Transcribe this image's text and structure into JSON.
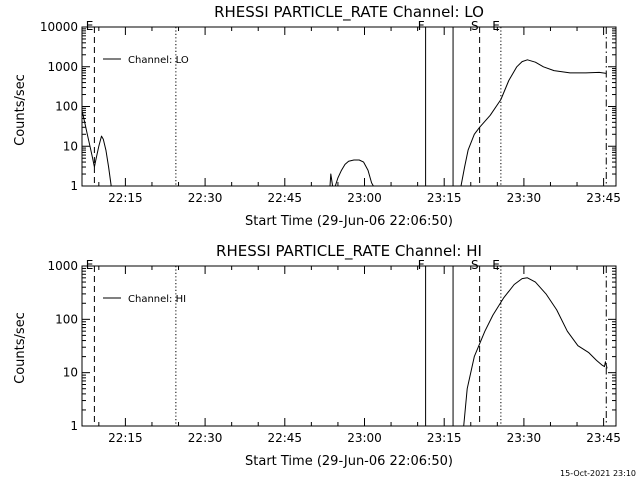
{
  "chart_data": [
    {
      "type": "line",
      "title": "RHESSI PARTICLE_RATE Channel: LO",
      "xlabel": "Start Time (29-Jun-06 22:06:50)",
      "ylabel": "Counts/sec",
      "yscale": "log",
      "ylim": [
        1,
        10000
      ],
      "xlim": [
        "22:06:50",
        "23:47:20"
      ],
      "grid": false,
      "legend": {
        "placement": "top-left",
        "entries": [
          "Channel: LO"
        ]
      },
      "x_ticks": [
        "22:15",
        "22:30",
        "22:45",
        "23:00",
        "23:15",
        "23:30",
        "23:45"
      ],
      "y_ticks": [
        "1",
        "10",
        "100",
        "1000",
        "10000"
      ],
      "markers": [
        {
          "label": "E",
          "time": "22:09:10",
          "style": "dashed"
        },
        {
          "label": "",
          "time": "22:24:30",
          "style": "dotted"
        },
        {
          "label": "F",
          "time": "23:11:30",
          "style": "solid"
        },
        {
          "label": "",
          "time": "23:16:40",
          "style": "solid"
        },
        {
          "label": "S",
          "time": "23:21:40",
          "style": "dashed"
        },
        {
          "label": "E",
          "time": "23:25:40",
          "style": "dotted"
        },
        {
          "label": "",
          "time": "23:45:30",
          "style": "dashdot"
        }
      ],
      "series": [
        {
          "name": "Channel: LO",
          "segments": [
            [
              [
                "22:06:50",
                80
              ],
              [
                "22:07:20",
                40
              ],
              [
                "22:07:50",
                20
              ],
              [
                "22:08:20",
                10
              ],
              [
                "22:08:50",
                5
              ],
              [
                "22:09:10",
                3
              ],
              [
                "22:09:30",
                5
              ],
              [
                "22:10:00",
                10
              ],
              [
                "22:10:30",
                18
              ],
              [
                "22:10:50",
                15
              ],
              [
                "22:11:20",
                8
              ],
              [
                "22:11:50",
                3
              ],
              [
                "22:12:20",
                1
              ]
            ],
            [
              [
                "22:53:30",
                1
              ],
              [
                "22:53:40",
                2
              ],
              [
                "22:54:00",
                1
              ]
            ],
            [
              [
                "22:54:30",
                1
              ],
              [
                "22:55:00",
                1.6
              ],
              [
                "22:55:40",
                2.5
              ],
              [
                "22:56:20",
                3.5
              ],
              [
                "22:57:00",
                4.2
              ],
              [
                "22:58:00",
                4.5
              ],
              [
                "22:59:00",
                4.5
              ],
              [
                "22:59:50",
                4
              ],
              [
                "23:00:40",
                2.5
              ],
              [
                "23:01:20",
                1.2
              ],
              [
                "23:01:40",
                1
              ]
            ],
            [
              [
                "23:18:10",
                1
              ],
              [
                "23:18:50",
                3
              ],
              [
                "23:19:30",
                8
              ],
              [
                "23:20:40",
                20
              ],
              [
                "23:21:40",
                30
              ],
              [
                "23:23:40",
                60
              ],
              [
                "23:25:40",
                150
              ],
              [
                "23:27:10",
                450
              ],
              [
                "23:28:40",
                1000
              ],
              [
                "23:29:40",
                1350
              ],
              [
                "23:30:40",
                1500
              ],
              [
                "23:32:10",
                1300
              ],
              [
                "23:33:40",
                1000
              ],
              [
                "23:35:40",
                800
              ],
              [
                "23:38:40",
                700
              ],
              [
                "23:41:40",
                700
              ],
              [
                "23:44:10",
                720
              ],
              [
                "23:45:30",
                680
              ]
            ]
          ]
        }
      ]
    },
    {
      "type": "line",
      "title": "RHESSI PARTICLE_RATE Channel: HI",
      "xlabel": "Start Time (29-Jun-06 22:06:50)",
      "ylabel": "Counts/sec",
      "yscale": "log",
      "ylim": [
        1,
        1000
      ],
      "xlim": [
        "22:06:50",
        "23:47:20"
      ],
      "grid": false,
      "legend": {
        "placement": "top-left",
        "entries": [
          "Channel: HI"
        ]
      },
      "x_ticks": [
        "22:15",
        "22:30",
        "22:45",
        "23:00",
        "23:15",
        "23:30",
        "23:45"
      ],
      "y_ticks": [
        "1",
        "10",
        "100",
        "1000"
      ],
      "markers": [
        {
          "label": "E",
          "time": "22:09:10",
          "style": "dashed"
        },
        {
          "label": "",
          "time": "22:24:30",
          "style": "dotted"
        },
        {
          "label": "F",
          "time": "23:11:30",
          "style": "solid"
        },
        {
          "label": "",
          "time": "23:16:40",
          "style": "solid"
        },
        {
          "label": "S",
          "time": "23:21:40",
          "style": "dashed"
        },
        {
          "label": "E",
          "time": "23:25:40",
          "style": "dotted"
        },
        {
          "label": "",
          "time": "23:45:30",
          "style": "dashdot"
        }
      ],
      "series": [
        {
          "name": "Channel: HI",
          "segments": [
            [
              [
                "23:18:40",
                1
              ],
              [
                "23:19:20",
                5
              ],
              [
                "23:20:40",
                20
              ],
              [
                "23:22:40",
                60
              ],
              [
                "23:24:10",
                120
              ],
              [
                "23:26:10",
                250
              ],
              [
                "23:28:10",
                450
              ],
              [
                "23:29:40",
                580
              ],
              [
                "23:30:40",
                600
              ],
              [
                "23:32:10",
                500
              ],
              [
                "23:34:10",
                300
              ],
              [
                "23:36:10",
                150
              ],
              [
                "23:38:10",
                60
              ],
              [
                "23:40:10",
                32
              ],
              [
                "23:42:10",
                24
              ],
              [
                "23:43:40",
                17
              ],
              [
                "23:44:40",
                14
              ],
              [
                "23:45:10",
                13
              ],
              [
                "23:45:20",
                16
              ],
              [
                "23:45:40",
                12
              ]
            ]
          ]
        }
      ]
    }
  ],
  "footer": {
    "timestamp": "15-Oct-2021 23:10"
  }
}
